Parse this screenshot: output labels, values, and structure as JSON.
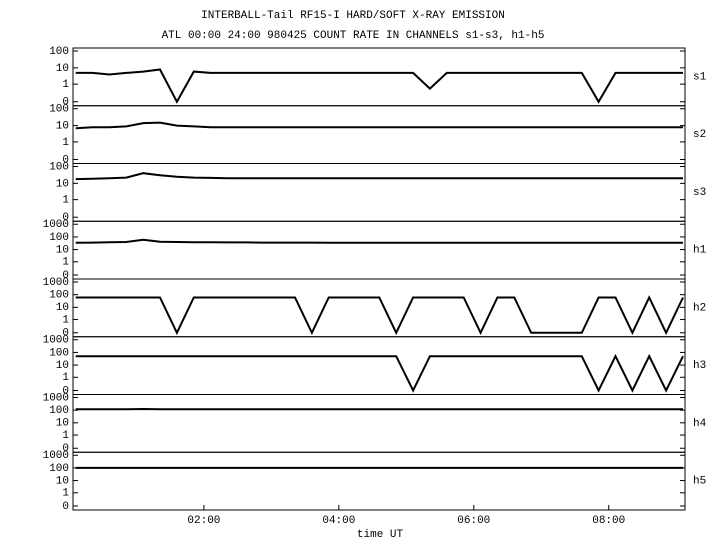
{
  "chart_data": {
    "type": "line",
    "title": "INTERBALL-Tail RF15-I HARD/SOFT X-RAY EMISSION",
    "subtitle": "ATL 00:00 24:00 980425  COUNT RATE IN CHANNELS s1-s3, h1-h5",
    "x_label": "time UT",
    "log_scale": true,
    "color": "#000000",
    "xlim": [
      0.06,
      9.13
    ],
    "xticks": [
      {
        "value": 2,
        "label": "02:00"
      },
      {
        "value": 4,
        "label": "04:00"
      },
      {
        "value": 6,
        "label": "06:00"
      },
      {
        "value": 8,
        "label": "08:00"
      }
    ],
    "x": [
      0.1,
      0.35,
      0.6,
      0.85,
      1.1,
      1.35,
      1.6,
      1.85,
      2.1,
      2.35,
      2.6,
      2.85,
      3.1,
      3.35,
      3.6,
      3.85,
      4.1,
      4.35,
      4.6,
      4.85,
      5.1,
      5.35,
      5.6,
      5.85,
      6.1,
      6.35,
      6.6,
      6.85,
      7.1,
      7.35,
      7.6,
      7.85,
      8.1,
      8.35,
      8.6,
      8.85,
      9.1
    ],
    "panels": [
      {
        "name": "s1",
        "ylim": [
          0,
          100
        ],
        "yticks": [
          0,
          1,
          10,
          100
        ],
        "values": [
          5,
          5,
          4,
          5,
          6,
          8,
          0,
          6,
          5,
          5,
          5,
          5,
          5,
          5,
          5,
          5,
          5,
          5,
          5,
          5,
          5,
          0.5,
          5,
          5,
          5,
          5,
          5,
          5,
          5,
          5,
          5,
          0,
          5,
          5,
          5,
          5,
          5
        ]
      },
      {
        "name": "s2",
        "ylim": [
          0,
          100
        ],
        "yticks": [
          0,
          1,
          10,
          100
        ],
        "values": [
          7,
          8,
          8,
          9,
          14,
          15,
          10,
          9,
          8,
          8,
          8,
          8,
          8,
          8,
          8,
          8,
          8,
          8,
          8,
          8,
          8,
          8,
          8,
          8,
          8,
          8,
          8,
          8,
          8,
          8,
          8,
          8,
          8,
          8,
          8,
          8,
          8
        ]
      },
      {
        "name": "s3",
        "ylim": [
          0,
          100
        ],
        "yticks": [
          0,
          1,
          10,
          100
        ],
        "values": [
          18,
          19,
          20,
          22,
          40,
          30,
          25,
          22,
          21,
          20,
          20,
          20,
          20,
          20,
          20,
          20,
          20,
          20,
          20,
          20,
          20,
          20,
          20,
          20,
          20,
          20,
          20,
          20,
          20,
          20,
          20,
          20,
          20,
          20,
          20,
          20,
          20
        ]
      },
      {
        "name": "h1",
        "ylim": [
          0,
          1000
        ],
        "yticks": [
          0,
          1,
          10,
          100,
          1000
        ],
        "values": [
          35,
          36,
          38,
          40,
          60,
          42,
          40,
          38,
          38,
          37,
          37,
          36,
          36,
          36,
          36,
          35,
          35,
          35,
          35,
          35,
          35,
          35,
          35,
          35,
          35,
          35,
          35,
          35,
          35,
          35,
          35,
          35,
          35,
          35,
          35,
          35,
          35
        ]
      },
      {
        "name": "h2",
        "ylim": [
          0,
          1000
        ],
        "yticks": [
          0,
          1,
          10,
          100,
          1000
        ],
        "values": [
          60,
          60,
          60,
          60,
          60,
          60,
          0,
          60,
          60,
          60,
          60,
          60,
          60,
          60,
          0,
          60,
          60,
          60,
          60,
          0,
          60,
          60,
          60,
          60,
          0,
          60,
          60,
          0,
          0,
          0,
          0,
          60,
          60,
          0,
          60,
          0,
          60
        ]
      },
      {
        "name": "h3",
        "ylim": [
          0,
          1000
        ],
        "yticks": [
          0,
          1,
          10,
          100,
          1000
        ],
        "values": [
          50,
          50,
          50,
          50,
          50,
          50,
          50,
          50,
          50,
          50,
          50,
          50,
          50,
          50,
          50,
          50,
          50,
          50,
          50,
          50,
          0,
          50,
          50,
          50,
          50,
          50,
          50,
          50,
          50,
          50,
          50,
          0,
          50,
          0,
          50,
          0,
          50
        ]
      },
      {
        "name": "h4",
        "ylim": [
          0,
          1000
        ],
        "yticks": [
          0,
          1,
          10,
          100,
          1000
        ],
        "values": [
          120,
          120,
          120,
          120,
          125,
          120,
          120,
          120,
          120,
          120,
          120,
          120,
          120,
          120,
          120,
          120,
          120,
          120,
          120,
          120,
          120,
          120,
          120,
          120,
          120,
          120,
          120,
          120,
          120,
          120,
          120,
          120,
          120,
          120,
          120,
          120,
          120
        ]
      },
      {
        "name": "h5",
        "ylim": [
          0,
          1000
        ],
        "yticks": [
          0,
          1,
          10,
          100,
          1000
        ],
        "values": [
          100,
          100,
          100,
          100,
          100,
          100,
          100,
          100,
          100,
          100,
          100,
          100,
          100,
          100,
          100,
          100,
          100,
          100,
          100,
          100,
          100,
          100,
          100,
          100,
          100,
          100,
          100,
          100,
          100,
          100,
          100,
          100,
          100,
          100,
          100,
          100,
          100
        ]
      }
    ]
  }
}
